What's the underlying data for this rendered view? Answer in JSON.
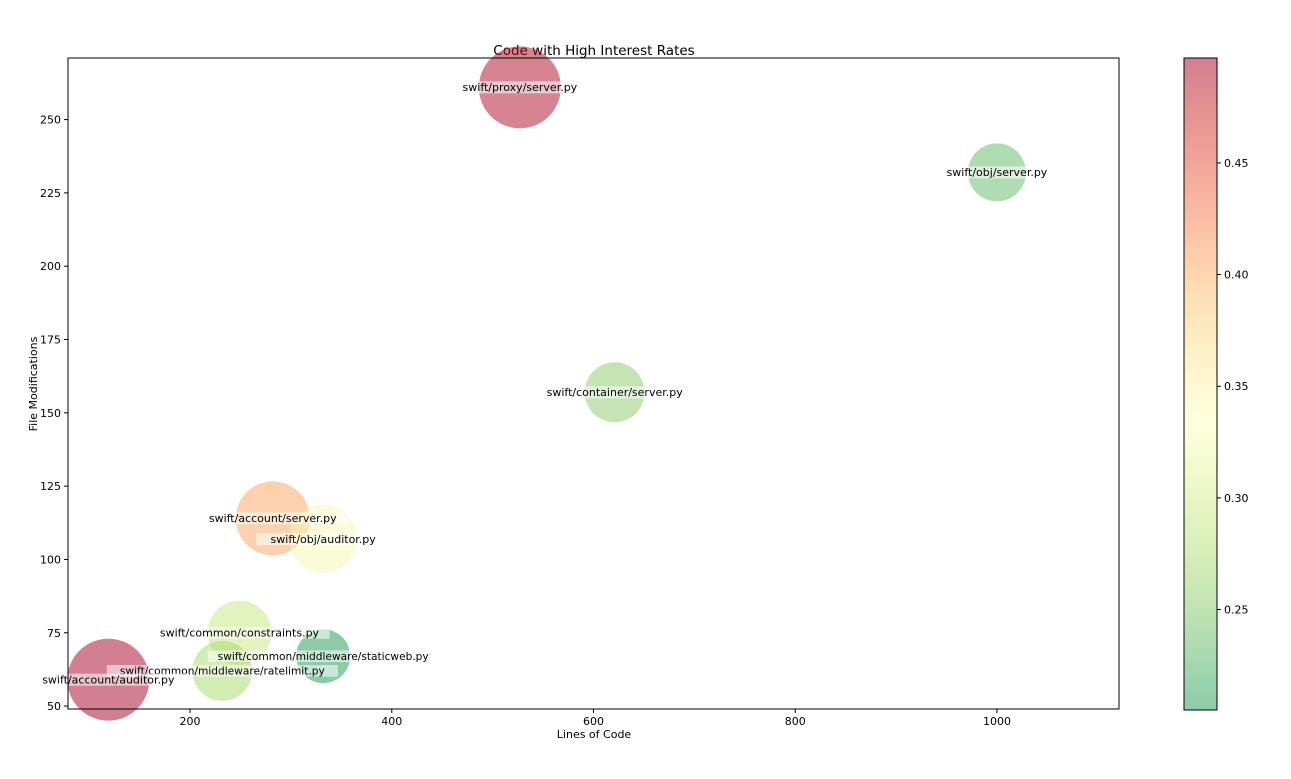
{
  "chart_data": {
    "type": "scatter",
    "title": "Code with High Interest Rates",
    "xlabel": "Lines of Code",
    "ylabel": "File Modifications",
    "xlim": [
      79,
      1121
    ],
    "ylim": [
      49,
      271
    ],
    "xticks": [
      200,
      400,
      600,
      800,
      1000
    ],
    "yticks": [
      50,
      75,
      100,
      125,
      150,
      175,
      200,
      225,
      250
    ],
    "colorbar": {
      "min": 0.205,
      "max": 0.497,
      "ticks": [
        0.25,
        0.3,
        0.35,
        0.4,
        0.45
      ],
      "tick_labels": [
        "0.25",
        "0.30",
        "0.35",
        "0.40",
        "0.45"
      ],
      "colormap": "RdYlGn_r",
      "alpha": 0.5
    },
    "points": [
      {
        "label": "swift/proxy/server.py",
        "x": 527,
        "y": 261,
        "color_value": 0.49,
        "size": 41
      },
      {
        "label": "swift/obj/server.py",
        "x": 1000,
        "y": 232,
        "color_value": 0.235,
        "size": 29
      },
      {
        "label": "swift/container/server.py",
        "x": 621,
        "y": 157,
        "color_value": 0.255,
        "size": 30
      },
      {
        "label": "swift/account/server.py",
        "x": 282,
        "y": 114,
        "color_value": 0.405,
        "size": 37
      },
      {
        "label": "swift/obj/auditor.py",
        "x": 332,
        "y": 107,
        "color_value": 0.325,
        "size": 34
      },
      {
        "label": "swift/common/constraints.py",
        "x": 249,
        "y": 75,
        "color_value": 0.29,
        "size": 32
      },
      {
        "label": "swift/common/middleware/staticweb.py",
        "x": 332,
        "y": 67,
        "color_value": 0.205,
        "size": 27
      },
      {
        "label": "swift/common/middleware/ratelimit.py",
        "x": 232,
        "y": 62,
        "color_value": 0.27,
        "size": 30
      },
      {
        "label": "swift/account/auditor.py",
        "x": 119,
        "y": 59,
        "color_value": 0.497,
        "size": 41
      }
    ]
  }
}
